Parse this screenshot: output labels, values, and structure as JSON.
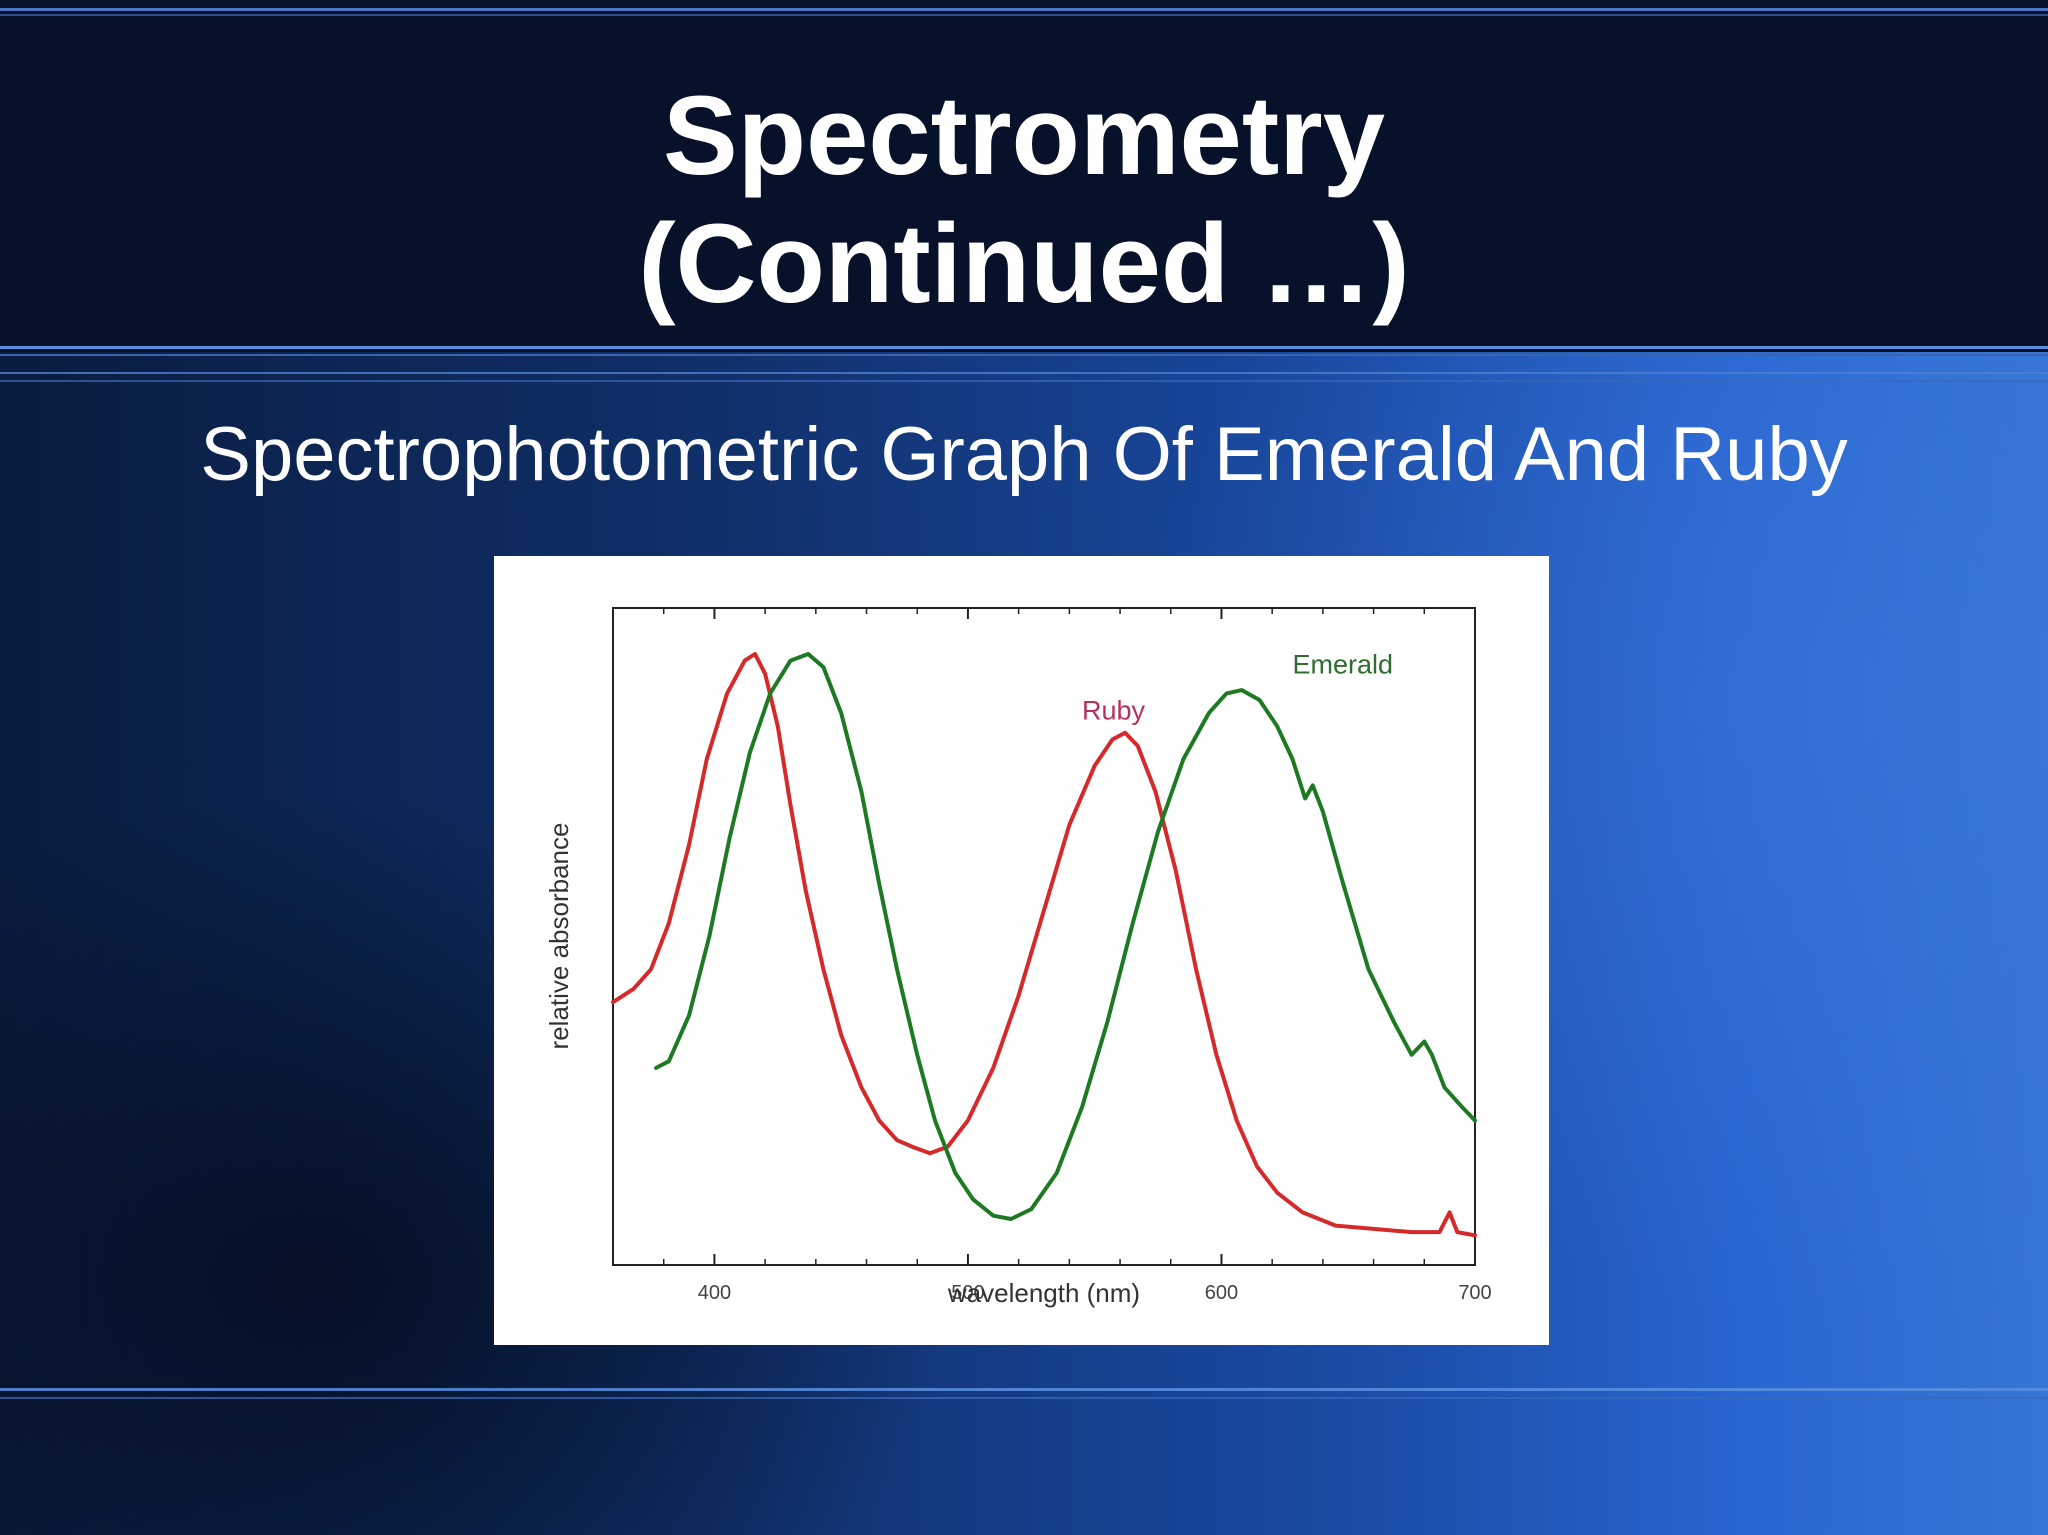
{
  "slide": {
    "title_line1": "Spectrometry",
    "title_line2": "(Continued …)",
    "subtitle": "Spectrophotometric Graph Of Emerald And Ruby",
    "colors": {
      "header_band": "#07122a",
      "accent_line": "#5b8fe0",
      "background_right": "#3676d6"
    }
  },
  "chart_data": {
    "type": "line",
    "xlabel": "wavelength (nm)",
    "ylabel": "relative absorbance",
    "xlim": [
      360,
      700
    ],
    "ylim": [
      0,
      1
    ],
    "xticks": [
      400,
      500,
      600,
      700
    ],
    "grid": false,
    "series": [
      {
        "name": "Ruby",
        "color": "#d42a2a",
        "label_color": "#b5305a",
        "points": [
          [
            360,
            0.4
          ],
          [
            368,
            0.42
          ],
          [
            375,
            0.45
          ],
          [
            382,
            0.52
          ],
          [
            390,
            0.64
          ],
          [
            397,
            0.77
          ],
          [
            405,
            0.87
          ],
          [
            412,
            0.92
          ],
          [
            416,
            0.93
          ],
          [
            420,
            0.9
          ],
          [
            425,
            0.82
          ],
          [
            430,
            0.7
          ],
          [
            436,
            0.57
          ],
          [
            443,
            0.45
          ],
          [
            450,
            0.35
          ],
          [
            458,
            0.27
          ],
          [
            465,
            0.22
          ],
          [
            472,
            0.19
          ],
          [
            478,
            0.18
          ],
          [
            485,
            0.17
          ],
          [
            492,
            0.18
          ],
          [
            500,
            0.22
          ],
          [
            510,
            0.3
          ],
          [
            520,
            0.41
          ],
          [
            530,
            0.54
          ],
          [
            540,
            0.67
          ],
          [
            550,
            0.76
          ],
          [
            557,
            0.8
          ],
          [
            562,
            0.81
          ],
          [
            567,
            0.79
          ],
          [
            574,
            0.72
          ],
          [
            582,
            0.6
          ],
          [
            590,
            0.45
          ],
          [
            598,
            0.32
          ],
          [
            606,
            0.22
          ],
          [
            614,
            0.15
          ],
          [
            622,
            0.11
          ],
          [
            632,
            0.08
          ],
          [
            645,
            0.06
          ],
          [
            660,
            0.055
          ],
          [
            675,
            0.05
          ],
          [
            686,
            0.05
          ],
          [
            690,
            0.08
          ],
          [
            693,
            0.05
          ],
          [
            700,
            0.045
          ]
        ]
      },
      {
        "name": "Emerald",
        "color": "#1e7a22",
        "label_color": "#2e6e2e",
        "points": [
          [
            377,
            0.3
          ],
          [
            382,
            0.31
          ],
          [
            390,
            0.38
          ],
          [
            398,
            0.5
          ],
          [
            406,
            0.65
          ],
          [
            414,
            0.78
          ],
          [
            422,
            0.87
          ],
          [
            430,
            0.92
          ],
          [
            437,
            0.93
          ],
          [
            443,
            0.91
          ],
          [
            450,
            0.84
          ],
          [
            458,
            0.72
          ],
          [
            465,
            0.58
          ],
          [
            472,
            0.45
          ],
          [
            480,
            0.32
          ],
          [
            487,
            0.22
          ],
          [
            495,
            0.14
          ],
          [
            502,
            0.1
          ],
          [
            510,
            0.075
          ],
          [
            517,
            0.07
          ],
          [
            525,
            0.085
          ],
          [
            535,
            0.14
          ],
          [
            545,
            0.24
          ],
          [
            555,
            0.37
          ],
          [
            565,
            0.52
          ],
          [
            575,
            0.66
          ],
          [
            585,
            0.77
          ],
          [
            595,
            0.84
          ],
          [
            602,
            0.87
          ],
          [
            608,
            0.875
          ],
          [
            615,
            0.86
          ],
          [
            622,
            0.82
          ],
          [
            628,
            0.77
          ],
          [
            633,
            0.71
          ],
          [
            636,
            0.73
          ],
          [
            640,
            0.69
          ],
          [
            648,
            0.58
          ],
          [
            658,
            0.45
          ],
          [
            668,
            0.37
          ],
          [
            675,
            0.32
          ],
          [
            680,
            0.34
          ],
          [
            683,
            0.32
          ],
          [
            688,
            0.27
          ],
          [
            695,
            0.24
          ],
          [
            700,
            0.22
          ]
        ]
      }
    ],
    "annotations": [
      {
        "text": "Ruby",
        "series": "Ruby",
        "at": [
          545,
          0.83
        ]
      },
      {
        "text": "Emerald",
        "series": "Emerald",
        "at": [
          628,
          0.9
        ]
      }
    ]
  }
}
